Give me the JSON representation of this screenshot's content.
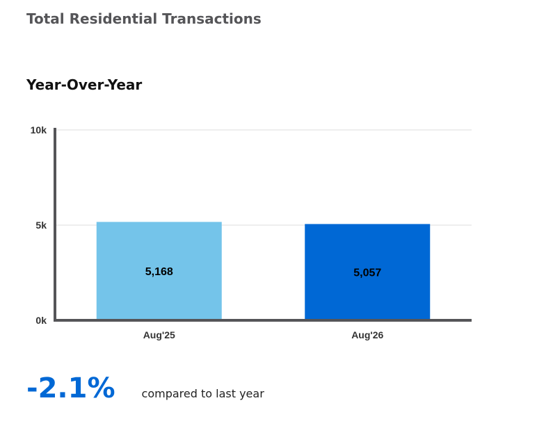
{
  "header": {
    "title": "Total Residential Transactions"
  },
  "section": {
    "title": "Year-Over-Year"
  },
  "chart_data": {
    "type": "bar",
    "categories": [
      "Aug'25",
      "Aug'26"
    ],
    "values": [
      5168,
      5057
    ],
    "value_labels": [
      "5,168",
      "5,057"
    ],
    "bar_colors": [
      "#74c4ea",
      "#0068d5"
    ],
    "ylim": [
      0,
      10000
    ],
    "yticks": [
      {
        "value": 0,
        "label": "0k"
      },
      {
        "value": 5000,
        "label": "5k"
      },
      {
        "value": 10000,
        "label": "10k"
      }
    ],
    "grid": true,
    "title": "",
    "xlabel": "",
    "ylabel": ""
  },
  "summary": {
    "change": "-2.1%",
    "change_color": "#0068d5",
    "text": "compared to last year"
  }
}
